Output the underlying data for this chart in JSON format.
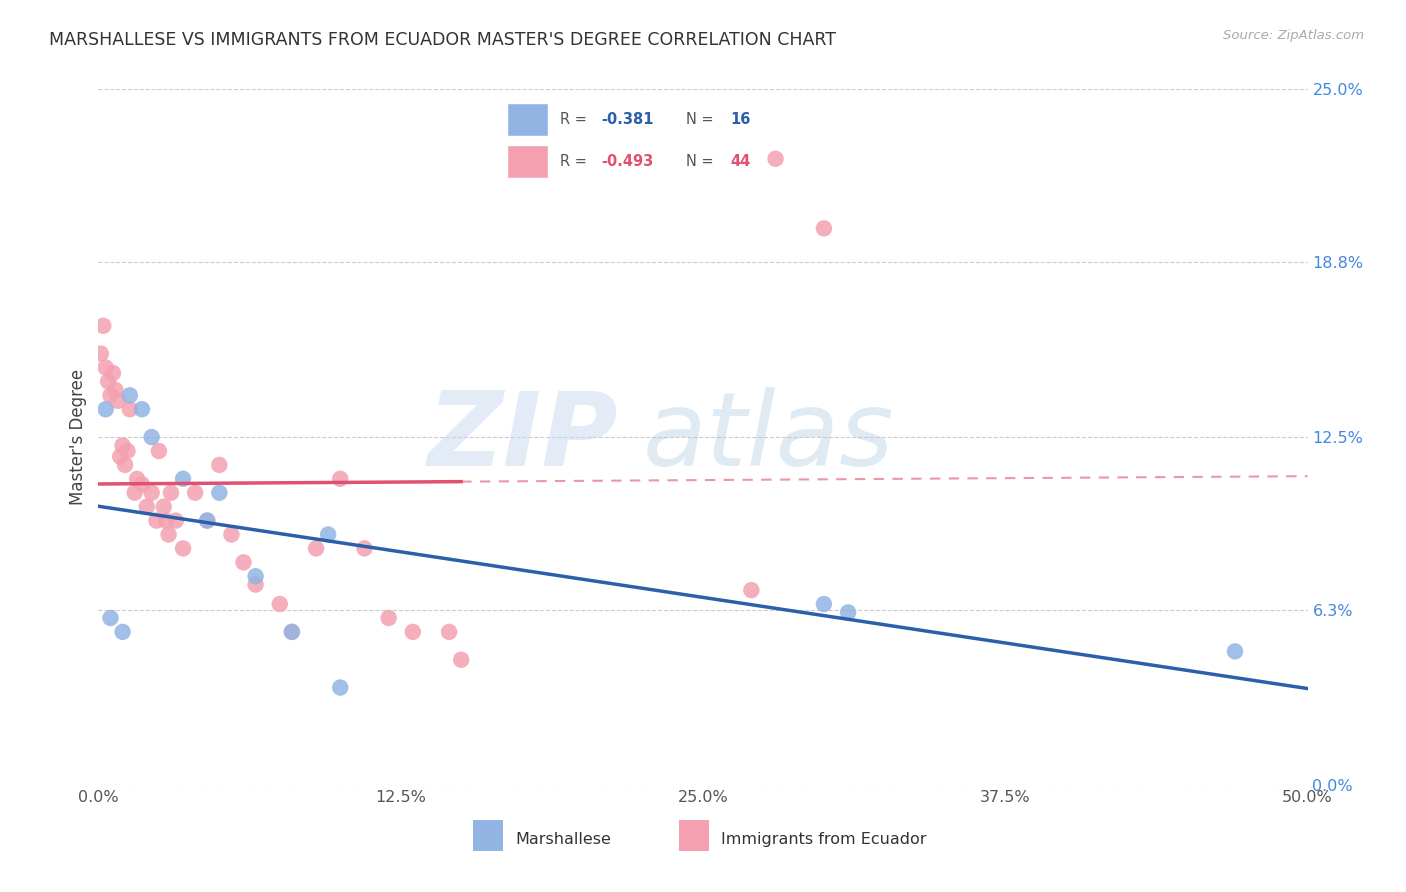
{
  "title": "MARSHALLESE VS IMMIGRANTS FROM ECUADOR MASTER'S DEGREE CORRELATION CHART",
  "source": "Source: ZipAtlas.com",
  "ylabel": "Master's Degree",
  "xlim": [
    0.0,
    50.0
  ],
  "ylim": [
    0.0,
    25.0
  ],
  "xtick_vals": [
    0.0,
    12.5,
    25.0,
    37.5,
    50.0
  ],
  "xtick_labels": [
    "0.0%",
    "12.5%",
    "25.0%",
    "37.5%",
    "50.0%"
  ],
  "ytick_vals": [
    0.0,
    6.3,
    12.5,
    18.8,
    25.0
  ],
  "ytick_labels": [
    "0.0%",
    "6.3%",
    "12.5%",
    "18.8%",
    "25.0%"
  ],
  "marshallese_R": -0.381,
  "marshallese_N": 16,
  "ecuador_R": -0.493,
  "ecuador_N": 44,
  "marshallese_color": "#92b4e3",
  "ecuador_color": "#f4a0b0",
  "marshallese_line_color": "#2b5faa",
  "ecuador_line_color": "#e05070",
  "legend_label_1": "Marshallese",
  "legend_label_2": "Immigrants from Ecuador",
  "marshallese_x": [
    0.3,
    0.5,
    1.0,
    1.3,
    1.8,
    2.2,
    3.5,
    4.5,
    5.0,
    6.5,
    8.0,
    9.5,
    10.0,
    30.0,
    31.0,
    47.0
  ],
  "marshallese_y": [
    13.5,
    6.0,
    5.5,
    14.0,
    13.5,
    12.5,
    11.0,
    9.5,
    10.5,
    7.5,
    5.5,
    9.0,
    3.5,
    6.5,
    6.2,
    4.8
  ],
  "ecuador_x": [
    0.1,
    0.2,
    0.3,
    0.4,
    0.5,
    0.6,
    0.7,
    0.8,
    0.9,
    1.0,
    1.1,
    1.2,
    1.3,
    1.5,
    1.6,
    1.8,
    2.0,
    2.2,
    2.4,
    2.5,
    2.7,
    2.8,
    2.9,
    3.0,
    3.2,
    3.5,
    4.0,
    4.5,
    5.0,
    5.5,
    6.0,
    6.5,
    7.5,
    8.0,
    9.0,
    10.0,
    11.0,
    12.0,
    13.0,
    14.5,
    15.0,
    27.0,
    28.0,
    30.0
  ],
  "ecuador_y": [
    15.5,
    16.5,
    15.0,
    14.5,
    14.0,
    14.8,
    14.2,
    13.8,
    11.8,
    12.2,
    11.5,
    12.0,
    13.5,
    10.5,
    11.0,
    10.8,
    10.0,
    10.5,
    9.5,
    12.0,
    10.0,
    9.5,
    9.0,
    10.5,
    9.5,
    8.5,
    10.5,
    9.5,
    11.5,
    9.0,
    8.0,
    7.2,
    6.5,
    5.5,
    8.5,
    11.0,
    8.5,
    6.0,
    5.5,
    5.5,
    4.5,
    7.0,
    22.5,
    20.0
  ],
  "ecuador_solid_end_x": 15.0,
  "watermark_zip_color": "#c8d8f0",
  "watermark_atlas_color": "#b0c8e0"
}
